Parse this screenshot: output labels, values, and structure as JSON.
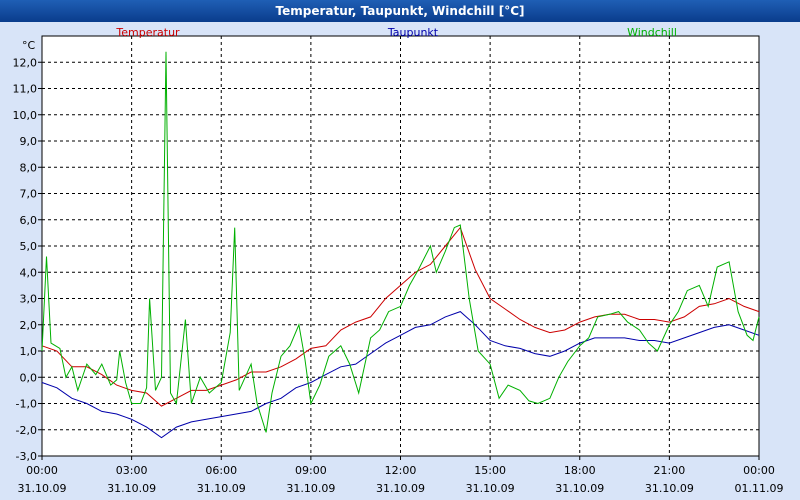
{
  "window": {
    "title": "Temperatur, Taupunkt, Windchill [°C]"
  },
  "chart_data": {
    "type": "line",
    "title": "Temperatur, Taupunkt, Windchill [°C]",
    "ylabel": "°C",
    "ylim": [
      -3.0,
      13.0
    ],
    "y_ticks": [
      "-3,0",
      "-2,0",
      "-1,0",
      "0,0",
      "1,0",
      "2,0",
      "3,0",
      "4,0",
      "5,0",
      "6,0",
      "7,0",
      "8,0",
      "9,0",
      "10,0",
      "11,0",
      "12,0"
    ],
    "y_tick_values": [
      -3,
      -2,
      -1,
      0,
      1,
      2,
      3,
      4,
      5,
      6,
      7,
      8,
      9,
      10,
      11,
      12
    ],
    "xlim": [
      0,
      24
    ],
    "x_ticks": [
      {
        "time": "00:00",
        "date": "31.10.09"
      },
      {
        "time": "03:00",
        "date": "31.10.09"
      },
      {
        "time": "06:00",
        "date": "31.10.09"
      },
      {
        "time": "09:00",
        "date": "31.10.09"
      },
      {
        "time": "12:00",
        "date": "31.10.09"
      },
      {
        "time": "15:00",
        "date": "31.10.09"
      },
      {
        "time": "18:00",
        "date": "31.10.09"
      },
      {
        "time": "21:00",
        "date": "31.10.09"
      },
      {
        "time": "00:00",
        "date": "01.11.09"
      }
    ],
    "grid": true,
    "legend_position": "top",
    "series": [
      {
        "name": "Temperatur",
        "color": "#cc0000",
        "points": [
          [
            0,
            1.2
          ],
          [
            0.5,
            1.0
          ],
          [
            1,
            0.4
          ],
          [
            1.5,
            0.4
          ],
          [
            2,
            0.1
          ],
          [
            2.5,
            -0.3
          ],
          [
            3,
            -0.5
          ],
          [
            3.5,
            -0.6
          ],
          [
            4,
            -1.1
          ],
          [
            4.5,
            -0.8
          ],
          [
            5,
            -0.5
          ],
          [
            5.5,
            -0.5
          ],
          [
            6,
            -0.3
          ],
          [
            6.5,
            -0.1
          ],
          [
            7,
            0.2
          ],
          [
            7.5,
            0.2
          ],
          [
            8,
            0.4
          ],
          [
            8.5,
            0.7
          ],
          [
            9,
            1.1
          ],
          [
            9.5,
            1.2
          ],
          [
            10,
            1.8
          ],
          [
            10.5,
            2.1
          ],
          [
            11,
            2.3
          ],
          [
            11.5,
            3.0
          ],
          [
            12,
            3.5
          ],
          [
            12.5,
            4.0
          ],
          [
            13,
            4.3
          ],
          [
            13.5,
            5.0
          ],
          [
            14,
            5.7
          ],
          [
            14.5,
            4.1
          ],
          [
            15,
            3.0
          ],
          [
            15.5,
            2.6
          ],
          [
            16,
            2.2
          ],
          [
            16.5,
            1.9
          ],
          [
            17,
            1.7
          ],
          [
            17.5,
            1.8
          ],
          [
            18,
            2.1
          ],
          [
            18.5,
            2.3
          ],
          [
            19,
            2.4
          ],
          [
            19.5,
            2.4
          ],
          [
            20,
            2.2
          ],
          [
            20.5,
            2.2
          ],
          [
            21,
            2.1
          ],
          [
            21.5,
            2.3
          ],
          [
            22,
            2.7
          ],
          [
            22.5,
            2.8
          ],
          [
            23,
            3.0
          ],
          [
            23.5,
            2.7
          ],
          [
            24,
            2.5
          ]
        ]
      },
      {
        "name": "Taupunkt",
        "color": "#0000aa",
        "points": [
          [
            0,
            -0.2
          ],
          [
            0.5,
            -0.4
          ],
          [
            1,
            -0.8
          ],
          [
            1.5,
            -1.0
          ],
          [
            2,
            -1.3
          ],
          [
            2.5,
            -1.4
          ],
          [
            3,
            -1.6
          ],
          [
            3.5,
            -1.9
          ],
          [
            4,
            -2.3
          ],
          [
            4.5,
            -1.9
          ],
          [
            5,
            -1.7
          ],
          [
            5.5,
            -1.6
          ],
          [
            6,
            -1.5
          ],
          [
            6.5,
            -1.4
          ],
          [
            7,
            -1.3
          ],
          [
            7.5,
            -1.0
          ],
          [
            8,
            -0.8
          ],
          [
            8.5,
            -0.4
          ],
          [
            9,
            -0.2
          ],
          [
            9.5,
            0.1
          ],
          [
            10,
            0.4
          ],
          [
            10.5,
            0.5
          ],
          [
            11,
            0.9
          ],
          [
            11.5,
            1.3
          ],
          [
            12,
            1.6
          ],
          [
            12.5,
            1.9
          ],
          [
            13,
            2.0
          ],
          [
            13.5,
            2.3
          ],
          [
            14,
            2.5
          ],
          [
            14.5,
            2.0
          ],
          [
            15,
            1.4
          ],
          [
            15.5,
            1.2
          ],
          [
            16,
            1.1
          ],
          [
            16.5,
            0.9
          ],
          [
            17,
            0.8
          ],
          [
            17.5,
            1.0
          ],
          [
            18,
            1.3
          ],
          [
            18.5,
            1.5
          ],
          [
            19,
            1.5
          ],
          [
            19.5,
            1.5
          ],
          [
            20,
            1.4
          ],
          [
            20.5,
            1.4
          ],
          [
            21,
            1.3
          ],
          [
            21.5,
            1.5
          ],
          [
            22,
            1.7
          ],
          [
            22.5,
            1.9
          ],
          [
            23,
            2.0
          ],
          [
            23.5,
            1.8
          ],
          [
            24,
            1.6
          ]
        ]
      },
      {
        "name": "Windchill",
        "color": "#00b000",
        "points": [
          [
            0,
            1.0
          ],
          [
            0.15,
            4.6
          ],
          [
            0.3,
            1.3
          ],
          [
            0.6,
            1.1
          ],
          [
            0.8,
            0.0
          ],
          [
            1,
            0.4
          ],
          [
            1.2,
            -0.5
          ],
          [
            1.5,
            0.5
          ],
          [
            1.8,
            0.1
          ],
          [
            2,
            0.5
          ],
          [
            2.3,
            -0.3
          ],
          [
            2.5,
            -0.1
          ],
          [
            2.6,
            1.0
          ],
          [
            2.8,
            -0.2
          ],
          [
            3,
            -1.0
          ],
          [
            3.3,
            -1.0
          ],
          [
            3.5,
            -0.4
          ],
          [
            3.6,
            3.0
          ],
          [
            3.8,
            -0.5
          ],
          [
            4,
            0.0
          ],
          [
            4.15,
            12.4
          ],
          [
            4.3,
            -0.6
          ],
          [
            4.5,
            -1.0
          ],
          [
            4.8,
            2.2
          ],
          [
            5,
            -1.0
          ],
          [
            5.3,
            0.0
          ],
          [
            5.6,
            -0.6
          ],
          [
            6,
            -0.2
          ],
          [
            6.3,
            1.7
          ],
          [
            6.45,
            5.7
          ],
          [
            6.6,
            -0.5
          ],
          [
            7,
            0.5
          ],
          [
            7.2,
            -1.0
          ],
          [
            7.5,
            -2.1
          ],
          [
            7.7,
            -0.6
          ],
          [
            8,
            0.8
          ],
          [
            8.3,
            1.2
          ],
          [
            8.6,
            2.0
          ],
          [
            8.8,
            0.7
          ],
          [
            9,
            -1.0
          ],
          [
            9.3,
            -0.3
          ],
          [
            9.6,
            0.8
          ],
          [
            9.8,
            1.0
          ],
          [
            10,
            1.2
          ],
          [
            10.3,
            0.5
          ],
          [
            10.6,
            -0.6
          ],
          [
            11,
            1.5
          ],
          [
            11.3,
            1.8
          ],
          [
            11.6,
            2.5
          ],
          [
            12,
            2.7
          ],
          [
            12.3,
            3.5
          ],
          [
            12.6,
            4.1
          ],
          [
            13,
            5.0
          ],
          [
            13.2,
            4.0
          ],
          [
            13.5,
            4.8
          ],
          [
            13.8,
            5.7
          ],
          [
            14,
            5.8
          ],
          [
            14.3,
            3.0
          ],
          [
            14.6,
            1.0
          ],
          [
            15,
            0.5
          ],
          [
            15.3,
            -0.8
          ],
          [
            15.6,
            -0.3
          ],
          [
            16,
            -0.5
          ],
          [
            16.3,
            -0.9
          ],
          [
            16.6,
            -1.0
          ],
          [
            17,
            -0.8
          ],
          [
            17.3,
            0.0
          ],
          [
            17.6,
            0.6
          ],
          [
            18,
            1.2
          ],
          [
            18.3,
            1.5
          ],
          [
            18.6,
            2.3
          ],
          [
            19,
            2.4
          ],
          [
            19.3,
            2.5
          ],
          [
            19.6,
            2.1
          ],
          [
            20,
            1.8
          ],
          [
            20.3,
            1.3
          ],
          [
            20.6,
            1.0
          ],
          [
            21,
            2.0
          ],
          [
            21.3,
            2.5
          ],
          [
            21.6,
            3.3
          ],
          [
            22,
            3.5
          ],
          [
            22.3,
            2.7
          ],
          [
            22.6,
            4.2
          ],
          [
            23,
            4.4
          ],
          [
            23.3,
            2.5
          ],
          [
            23.6,
            1.6
          ],
          [
            23.8,
            1.4
          ],
          [
            24,
            2.3
          ]
        ]
      }
    ]
  }
}
